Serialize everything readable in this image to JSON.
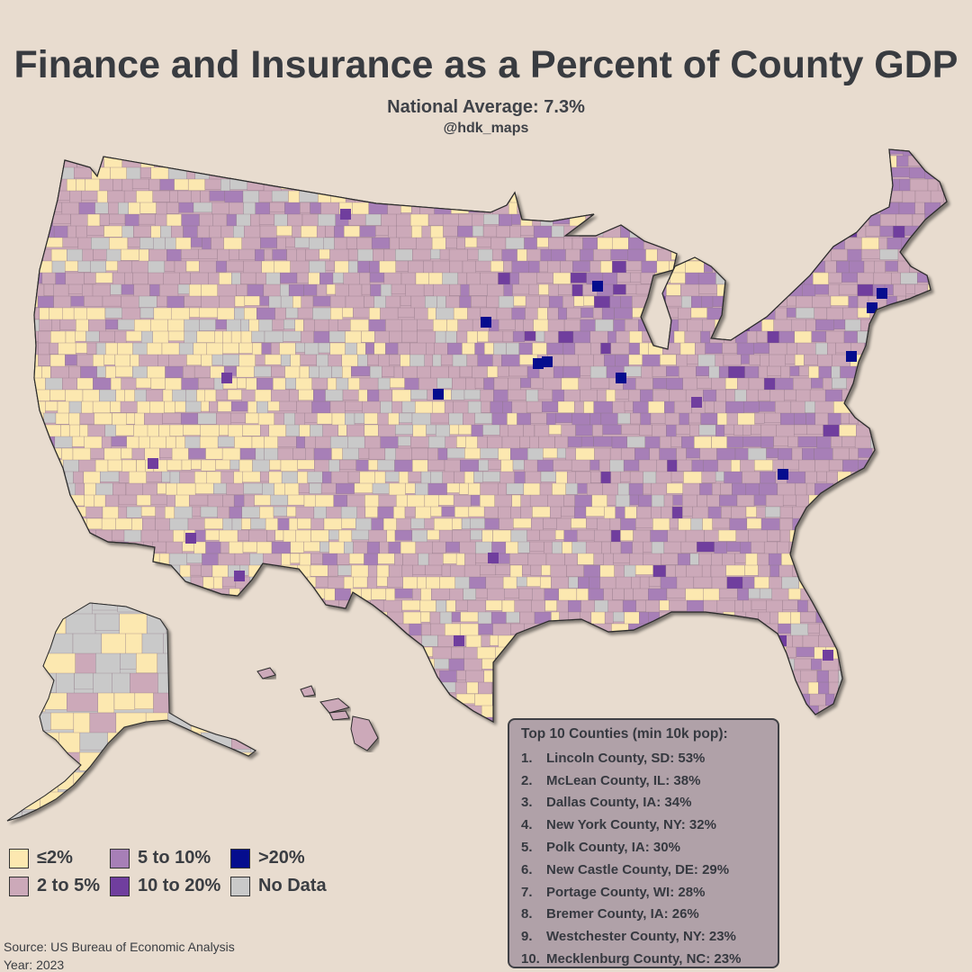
{
  "header": {
    "title": "Finance and Insurance as a Percent of County GDP",
    "subtitle": "National Average: 7.3%",
    "handle": "@hdk_maps"
  },
  "legend": [
    {
      "label": "≤2%",
      "color": "#fce8b0"
    },
    {
      "label": "5 to 10%",
      "color": "#a77fb7"
    },
    {
      "label": ">20%",
      "color": "#050d8e"
    },
    {
      "label": "2 to 5%",
      "color": "#cca9b9"
    },
    {
      "label": "10 to 20%",
      "color": "#703e9e"
    },
    {
      "label": "No Data",
      "color": "#c9c9c9"
    }
  ],
  "top10": {
    "title": "Top 10 Counties (min 10k pop):",
    "rows": [
      {
        "rank": "1.",
        "text": "Lincoln County, SD: 53%"
      },
      {
        "rank": "2.",
        "text": "McLean County, IL: 38%"
      },
      {
        "rank": "3.",
        "text": "Dallas County, IA: 34%"
      },
      {
        "rank": "4.",
        "text": "New York County, NY: 32%"
      },
      {
        "rank": "5.",
        "text": "Polk County, IA: 30%"
      },
      {
        "rank": "6.",
        "text": "New Castle County, DE: 29%"
      },
      {
        "rank": "7.",
        "text": "Portage County, WI: 28%"
      },
      {
        "rank": "8.",
        "text": "Bremer County, IA: 26%"
      },
      {
        "rank": "9.",
        "text": "Westchester County, NY: 23%"
      },
      {
        "rank": "10.",
        "text": "Mecklenburg County, NC: 23%"
      }
    ]
  },
  "footer": {
    "source": "Source: US Bureau of Economic Analysis",
    "year": "Year: 2023"
  },
  "map_colors": {
    "background": "#e8dccf",
    "low": "#fce8b0",
    "mid_low": "#cca9b9",
    "mid": "#a77fb7",
    "high": "#703e9e",
    "top": "#050d8e",
    "none": "#c9c9c9"
  }
}
